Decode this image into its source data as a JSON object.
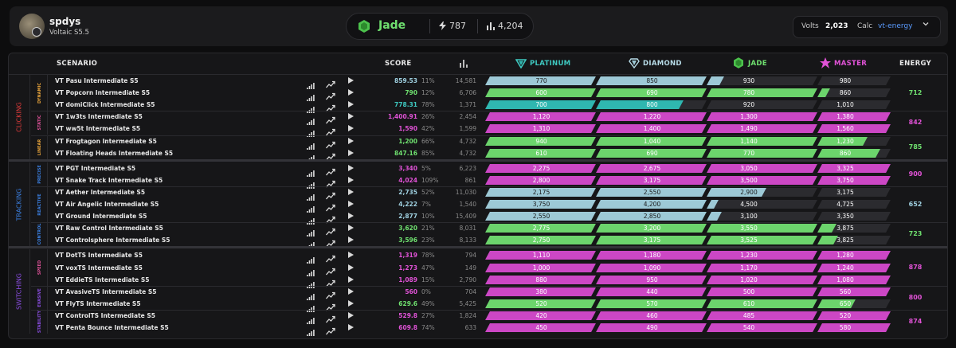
{
  "profile": {
    "username": "spdys",
    "subtitle": "Voltaic S5.5"
  },
  "rank": {
    "name": "Jade",
    "energy": "787",
    "leaderboard": "4,204",
    "color": "#6fe06f"
  },
  "volts": {
    "label": "Volts",
    "value": "2,023",
    "calc_label": "Calc",
    "calc_value": "vt-energy"
  },
  "headers": {
    "scenario": "SCENARIO",
    "score": "SCORE",
    "energy": "ENERGY",
    "platinum": "PLATINUM",
    "diamond": "DIAMOND",
    "jade": "JADE",
    "master": "MASTER"
  },
  "colors": {
    "platinum": "#9dc9d6",
    "diamond": "#b7dbe7",
    "jade": "#6cd46c",
    "master": "#cc47c5",
    "teal": "#2fb7b0",
    "empty": "#2b2b2f"
  },
  "categories": [
    {
      "name": "CLICKING",
      "color": "#e03b3b",
      "subs": [
        {
          "name": "DYNAMIC",
          "color": "#e8a43c",
          "energy": "712",
          "energy_color": "#6fe06f",
          "rows": [
            {
              "name": "VT Pasu Intermediate S5",
              "score": "859.53",
              "score_color": "#9fd0e0",
              "pct": "11%",
              "lb": "14,581",
              "thr": [
                "770",
                "850",
                "930",
                "980"
              ],
              "fill": [
                1,
                1,
                0.12,
                0
              ],
              "color": "#9dc9d6"
            },
            {
              "name": "VT Popcorn Intermediate S5",
              "score": "790",
              "score_color": "#6fe06f",
              "pct": "12%",
              "lb": "6,706",
              "thr": [
                "600",
                "690",
                "780",
                "860"
              ],
              "fill": [
                1,
                1,
                1,
                0.12
              ],
              "color": "#6cd46c"
            },
            {
              "name": "VT domiClick Intermediate S5",
              "score": "778.31",
              "score_color": "#3ec8c0",
              "pct": "78%",
              "lb": "1,371",
              "thr": [
                "700",
                "800",
                "920",
                "1,010"
              ],
              "fill": [
                1,
                0.78,
                0,
                0
              ],
              "color": "#2fb7b0"
            }
          ]
        },
        {
          "name": "STATIC",
          "color": "#e0529a",
          "energy": "842",
          "energy_color": "#e052d6",
          "rows": [
            {
              "name": "VT 1w3ts Intermediate S5",
              "score": "1,400.91",
              "score_color": "#e052d6",
              "pct": "26%",
              "lb": "2,454",
              "thr": [
                "1,120",
                "1,220",
                "1,300",
                "1,380"
              ],
              "fill": [
                1,
                1,
                1,
                1
              ],
              "color": "#cc47c5"
            },
            {
              "name": "VT ww5t Intermediate S5",
              "score": "1,590",
              "score_color": "#e052d6",
              "pct": "42%",
              "lb": "1,599",
              "thr": [
                "1,310",
                "1,400",
                "1,490",
                "1,560"
              ],
              "fill": [
                1,
                1,
                1,
                1
              ],
              "color": "#cc47c5"
            }
          ]
        },
        {
          "name": "LINEAR",
          "color": "#e8a43c",
          "energy": "785",
          "energy_color": "#6fe06f",
          "rows": [
            {
              "name": "VT Frogtagon Intermediate S5",
              "score": "1,200",
              "score_color": "#6fe06f",
              "pct": "66%",
              "lb": "4,732",
              "thr": [
                "940",
                "1,040",
                "1,140",
                "1,230"
              ],
              "fill": [
                1,
                1,
                1,
                0.66
              ],
              "color": "#6cd46c"
            },
            {
              "name": "VT Floating Heads Intermediate S5",
              "score": "847.16",
              "score_color": "#6fe06f",
              "pct": "85%",
              "lb": "4,732",
              "thr": [
                "610",
                "690",
                "770",
                "860"
              ],
              "fill": [
                1,
                1,
                1,
                0.85
              ],
              "color": "#6cd46c"
            }
          ]
        }
      ]
    },
    {
      "name": "TRACKING",
      "color": "#3b7fe0",
      "subs": [
        {
          "name": "PRECISE",
          "color": "#3b7fe0",
          "energy": "900",
          "energy_color": "#e052d6",
          "rows": [
            {
              "name": "VT PGT Intermediate S5",
              "score": "3,340",
              "score_color": "#e052d6",
              "pct": "5%",
              "lb": "6,223",
              "thr": [
                "2,275",
                "2,675",
                "3,050",
                "3,325"
              ],
              "fill": [
                1,
                1,
                1,
                1
              ],
              "color": "#cc47c5"
            },
            {
              "name": "VT Snake Track Intermediate S5",
              "score": "4,024",
              "score_color": "#e052d6",
              "pct": "109%",
              "lb": "861",
              "thr": [
                "2,800",
                "3,175",
                "3,500",
                "3,750"
              ],
              "fill": [
                1,
                1,
                1,
                1
              ],
              "color": "#cc47c5"
            }
          ]
        },
        {
          "name": "REACTIVE",
          "color": "#3b7fe0",
          "energy": "652",
          "energy_color": "#9fd0e0",
          "rows": [
            {
              "name": "VT Aether Intermediate S5",
              "score": "2,735",
              "score_color": "#9fd0e0",
              "pct": "52%",
              "lb": "11,030",
              "thr": [
                "2,175",
                "2,550",
                "2,900",
                "3,175"
              ],
              "fill": [
                1,
                1,
                0.52,
                0
              ],
              "color": "#9dc9d6"
            },
            {
              "name": "VT Air Angelic Intermediate S5",
              "score": "4,222",
              "score_color": "#9fd0e0",
              "pct": "7%",
              "lb": "1,540",
              "thr": [
                "3,750",
                "4,200",
                "4,500",
                "4,725"
              ],
              "fill": [
                1,
                1,
                0.07,
                0
              ],
              "color": "#9dc9d6"
            },
            {
              "name": "VT Ground Intermediate S5",
              "score": "2,877",
              "score_color": "#9fd0e0",
              "pct": "10%",
              "lb": "15,409",
              "thr": [
                "2,550",
                "2,850",
                "3,100",
                "3,350"
              ],
              "fill": [
                1,
                1,
                0.1,
                0
              ],
              "color": "#9dc9d6"
            }
          ]
        },
        {
          "name": "CONTROL",
          "color": "#3b7fe0",
          "energy": "723",
          "energy_color": "#6fe06f",
          "rows": [
            {
              "name": "VT Raw Control Intermediate S5",
              "score": "3,620",
              "score_color": "#6fe06f",
              "pct": "21%",
              "lb": "8,031",
              "thr": [
                "2,775",
                "3,200",
                "3,550",
                "3,875"
              ],
              "fill": [
                1,
                1,
                1,
                0.21
              ],
              "color": "#6cd46c"
            },
            {
              "name": "VT Controlsphere Intermediate S5",
              "score": "3,596",
              "score_color": "#6fe06f",
              "pct": "23%",
              "lb": "8,133",
              "thr": [
                "2,750",
                "3,175",
                "3,525",
                "3,825"
              ],
              "fill": [
                1,
                1,
                1,
                0.23
              ],
              "color": "#6cd46c"
            }
          ]
        }
      ]
    },
    {
      "name": "SWITCHING",
      "color": "#8a4de0",
      "subs": [
        {
          "name": "SPEED",
          "color": "#e0529a",
          "energy": "878",
          "energy_color": "#e052d6",
          "rows": [
            {
              "name": "VT DotTS Intermediate S5",
              "score": "1,319",
              "score_color": "#e052d6",
              "pct": "78%",
              "lb": "794",
              "thr": [
                "1,110",
                "1,180",
                "1,230",
                "1,280"
              ],
              "fill": [
                1,
                1,
                1,
                1
              ],
              "color": "#cc47c5"
            },
            {
              "name": "VT voxTS Intermediate S5",
              "score": "1,273",
              "score_color": "#e052d6",
              "pct": "47%",
              "lb": "149",
              "thr": [
                "1,000",
                "1,090",
                "1,170",
                "1,240"
              ],
              "fill": [
                1,
                1,
                1,
                1
              ],
              "color": "#cc47c5"
            },
            {
              "name": "VT EddieTS Intermediate S5",
              "score": "1,089",
              "score_color": "#e052d6",
              "pct": "15%",
              "lb": "2,790",
              "thr": [
                "880",
                "950",
                "1,020",
                "1,080"
              ],
              "fill": [
                1,
                1,
                1,
                1
              ],
              "color": "#cc47c5"
            }
          ]
        },
        {
          "name": "EVASIVE",
          "color": "#8a4de0",
          "energy": "800",
          "energy_color": "#e052d6",
          "rows": [
            {
              "name": "VT AvasiveTS Intermediate S5",
              "score": "560",
              "score_color": "#e052d6",
              "pct": "0%",
              "lb": "704",
              "thr": [
                "380",
                "440",
                "500",
                "560"
              ],
              "fill": [
                1,
                1,
                1,
                1
              ],
              "color": "#cc47c5"
            },
            {
              "name": "VT FlyTS Intermediate S5",
              "score": "629.6",
              "score_color": "#6fe06f",
              "pct": "49%",
              "lb": "5,425",
              "thr": [
                "520",
                "570",
                "610",
                "650"
              ],
              "fill": [
                1,
                1,
                1,
                0.49
              ],
              "color": "#6cd46c"
            }
          ]
        },
        {
          "name": "STABILITY",
          "color": "#8a4de0",
          "energy": "874",
          "energy_color": "#e052d6",
          "rows": [
            {
              "name": "VT ControlTS Intermediate S5",
              "score": "529.8",
              "score_color": "#e052d6",
              "pct": "27%",
              "lb": "1,824",
              "thr": [
                "420",
                "460",
                "485",
                "520"
              ],
              "fill": [
                1,
                1,
                1,
                1
              ],
              "color": "#cc47c5"
            },
            {
              "name": "VT Penta Bounce Intermediate S5",
              "score": "609.8",
              "score_color": "#e052d6",
              "pct": "74%",
              "lb": "633",
              "thr": [
                "450",
                "490",
                "540",
                "580"
              ],
              "fill": [
                1,
                1,
                1,
                1
              ],
              "color": "#cc47c5"
            }
          ]
        }
      ]
    }
  ]
}
